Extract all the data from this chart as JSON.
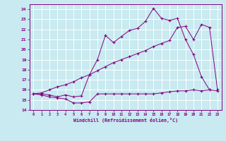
{
  "xlabel": "Windchill (Refroidissement éolien,°C)",
  "xlim": [
    -0.5,
    23.5
  ],
  "ylim": [
    14,
    24.5
  ],
  "yticks": [
    14,
    15,
    16,
    17,
    18,
    19,
    20,
    21,
    22,
    23,
    24
  ],
  "xticks": [
    0,
    1,
    2,
    3,
    4,
    5,
    6,
    7,
    8,
    9,
    10,
    11,
    12,
    13,
    14,
    15,
    16,
    17,
    18,
    19,
    20,
    21,
    22,
    23
  ],
  "bg_color": "#c8eaf0",
  "line_color": "#800080",
  "grid_color": "#ffffff",
  "series1": [
    15.6,
    15.5,
    15.3,
    15.2,
    15.1,
    14.7,
    14.7,
    14.8,
    15.6,
    15.6,
    15.6,
    15.6,
    15.6,
    15.6,
    15.6,
    15.6,
    15.7,
    15.8,
    15.9,
    15.9,
    16.0,
    15.9,
    16.0,
    15.9
  ],
  "series2": [
    15.6,
    15.6,
    15.5,
    15.3,
    15.5,
    15.3,
    15.4,
    17.5,
    19.0,
    21.4,
    20.7,
    21.3,
    21.9,
    22.1,
    22.8,
    24.1,
    23.1,
    22.9,
    23.1,
    21.0,
    19.5,
    17.3,
    16.0,
    null
  ],
  "series3": [
    15.6,
    15.7,
    16.0,
    16.3,
    16.5,
    16.8,
    17.2,
    17.5,
    17.9,
    18.3,
    18.7,
    19.0,
    19.3,
    19.6,
    19.9,
    20.3,
    20.6,
    20.9,
    22.2,
    22.3,
    21.0,
    22.5,
    22.2,
    16.0
  ]
}
